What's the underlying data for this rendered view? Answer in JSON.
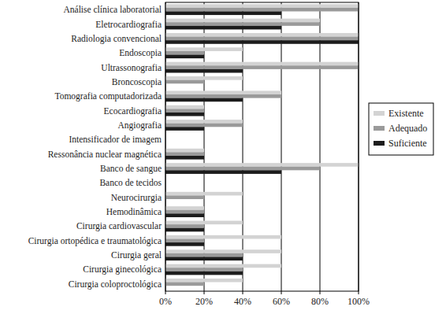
{
  "chart_data": {
    "type": "bar",
    "orientation": "horizontal",
    "grid": true,
    "legend": "right",
    "categories": [
      "Análise clínica laboratorial",
      "Eletrocardiografia",
      "Radiologia convencional",
      "Endoscopia",
      "Ultrassonografia",
      "Broncoscopia",
      "Tomografia computadorizada",
      "Ecocardiografia",
      "Angiografia",
      "Intensificador de imagem",
      "Ressonância nuclear magnética",
      "Banco de sangue",
      "Banco de tecidos",
      "Neurocirurgia",
      "Hemodinâmica",
      "Cirurgia cardiovascular",
      "Cirurgia ortopédica e traumatológica",
      "Cirurgia geral",
      "Cirurgia ginecológica",
      "Cirurgia coloproctológica"
    ],
    "series": [
      {
        "name": "Existente",
        "color": "#d3d3d3",
        "values": [
          100,
          80,
          100,
          40,
          100,
          40,
          60,
          20,
          40,
          0,
          20,
          100,
          0,
          40,
          20,
          40,
          60,
          60,
          60,
          40
        ]
      },
      {
        "name": "Adequado",
        "color": "#9a9a9a",
        "values": [
          100,
          80,
          100,
          20,
          100,
          20,
          60,
          20,
          40,
          0,
          20,
          80,
          0,
          20,
          20,
          20,
          20,
          40,
          40,
          20
        ]
      },
      {
        "name": "Suficiente",
        "color": "#1c1c1c",
        "values": [
          60,
          60,
          100,
          20,
          40,
          0,
          40,
          20,
          20,
          0,
          20,
          60,
          0,
          0,
          20,
          20,
          20,
          40,
          40,
          0
        ]
      }
    ],
    "xlim": [
      0,
      100
    ],
    "xticks": [
      {
        "value": 0,
        "label": "0%"
      },
      {
        "value": 20,
        "label": "20%"
      },
      {
        "value": 40,
        "label": "40%"
      },
      {
        "value": 60,
        "label": "60%"
      },
      {
        "value": 80,
        "label": "80%"
      },
      {
        "value": 100,
        "label": "100%"
      }
    ]
  }
}
